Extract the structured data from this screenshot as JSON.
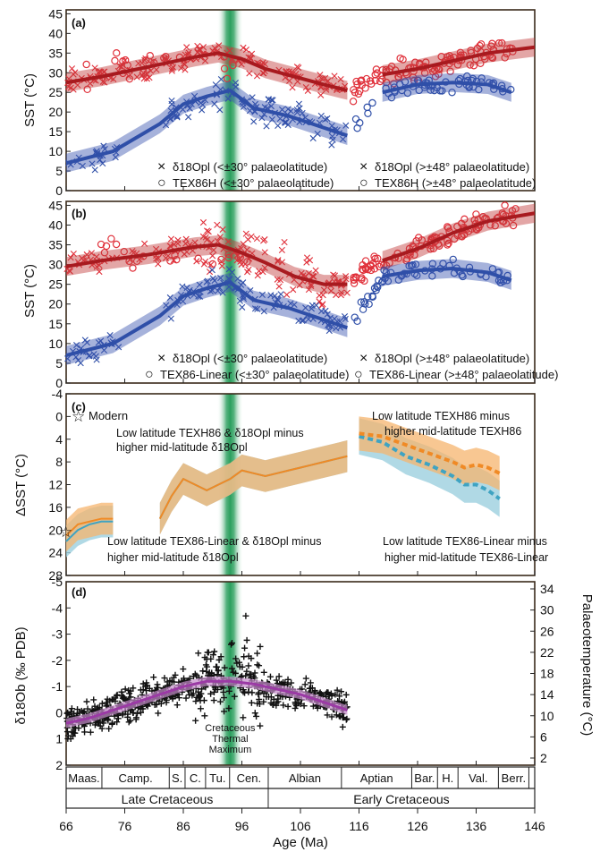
{
  "figure": {
    "x_axis": {
      "label": "Age (Ma)",
      "range": [
        66,
        146
      ],
      "ticks": [
        "66",
        "76",
        "86",
        "96",
        "106",
        "116",
        "126",
        "136",
        "146"
      ],
      "reversed_geologic": true
    },
    "highlight": {
      "label_lines": [
        "Cretaceous",
        "Thermal",
        "Maximum"
      ],
      "center_ma": 94,
      "half_width_ma": 2.2,
      "color": "#1f9a55"
    },
    "stages": [
      {
        "name": "Maas.",
        "from": 66,
        "to": 72.1
      },
      {
        "name": "Camp.",
        "from": 72.1,
        "to": 83.6
      },
      {
        "name": "S.",
        "from": 83.6,
        "to": 86.3
      },
      {
        "name": "C.",
        "from": 86.3,
        "to": 89.8
      },
      {
        "name": "Tu.",
        "from": 89.8,
        "to": 93.9
      },
      {
        "name": "Cen.",
        "from": 93.9,
        "to": 100.5
      },
      {
        "name": "Albian",
        "from": 100.5,
        "to": 113
      },
      {
        "name": "Aptian",
        "from": 113,
        "to": 125
      },
      {
        "name": "Bar.",
        "from": 125,
        "to": 129.4
      },
      {
        "name": "H.",
        "from": 129.4,
        "to": 132.9
      },
      {
        "name": "Val.",
        "from": 132.9,
        "to": 139.8
      },
      {
        "name": "Berr.",
        "from": 139.8,
        "to": 145
      }
    ],
    "epochs": [
      {
        "name": "Late Cretaceous",
        "from": 66,
        "to": 100.5
      },
      {
        "name": "Early Cretaceous",
        "from": 100.5,
        "to": 146
      }
    ]
  },
  "panels": {
    "a": {
      "tag": "(a)",
      "ylabel": "SST (°C)",
      "yticks": [
        "0",
        "5",
        "10",
        "15",
        "20",
        "25",
        "30",
        "35",
        "40",
        "45"
      ],
      "legend": [
        {
          "marker": "×",
          "color": "#e0303a",
          "text": "δ18Opl (<±30° palaeolatitude)"
        },
        {
          "marker": "○",
          "color": "#e0303a",
          "text": "TEX86H (<±30° palaeolatitude)"
        },
        {
          "marker": "×",
          "color": "#2f4fa8",
          "text": "δ18Opl (>±48° palaeolatitude)"
        },
        {
          "marker": "○",
          "color": "#2f4fa8",
          "text": "TEX86H (>±48° palaeolatitude)"
        }
      ]
    },
    "b": {
      "tag": "(b)",
      "ylabel": "SST (°C)",
      "yticks": [
        "0",
        "5",
        "10",
        "15",
        "20",
        "25",
        "30",
        "35",
        "40",
        "45"
      ],
      "legend": [
        {
          "marker": "×",
          "color": "#e0303a",
          "text": "δ18Opl (<±30° palaeolatitude)"
        },
        {
          "marker": "○",
          "color": "#e0303a",
          "text": "TEX86-Linear (<±30° palaeolatitude)"
        },
        {
          "marker": "×",
          "color": "#2f4fa8",
          "text": "δ18Opl (>±48° palaeolatitude)"
        },
        {
          "marker": "○",
          "color": "#2f4fa8",
          "text": "TEX86-Linear (>±48° palaeolatitude)"
        }
      ]
    },
    "c": {
      "tag": "(c)",
      "ylabel": "ΔSST (°C)",
      "yticks": [
        "-4",
        "0",
        "4",
        "8",
        "12",
        "16",
        "20",
        "24",
        "28"
      ],
      "modern_label": "Modern",
      "annotations": {
        "orange_left_1": "Low latitude TEXH86 & δ18Opl minus",
        "orange_left_2": "higher mid-latitude δ18Opl",
        "orange_right_1": "Low latitude TEXH86 minus",
        "orange_right_2": "higher mid-latitude TEXH86",
        "blue_left_1": "Low latitude TEX86-Linear & δ18Opl minus",
        "blue_left_2": "higher mid-latitude δ18Opl",
        "blue_right_1": "Low latitude TEX86-Linear minus",
        "blue_right_2": "higher mid-latitude TEX86-Linear"
      }
    },
    "d": {
      "tag": "(d)",
      "ylabel": "δ18Ob (‰ PDB)",
      "ylabel_right": "Palaeotemperature (°C)",
      "yticks": [
        "-5",
        "-4",
        "-3",
        "-2",
        "-1",
        "0",
        "1",
        "2"
      ],
      "yticks_right": [
        "2",
        "6",
        "10",
        "14",
        "18",
        "22",
        "26",
        "30",
        "34"
      ]
    }
  },
  "chart_data": [
    {
      "panel": "a",
      "type": "scatter",
      "xlim": [
        66,
        146
      ],
      "ylim": [
        0,
        46
      ],
      "series": [
        {
          "name": "Low latitude trend",
          "color": "#a81a1f",
          "x": [
            66,
            72,
            80,
            88,
            92,
            96,
            100,
            105,
            110,
            114,
            120,
            126,
            132,
            138,
            146
          ],
          "y": [
            27.5,
            29,
            31.5,
            34,
            35,
            33.5,
            31,
            29,
            27,
            25.5,
            29.5,
            31,
            33,
            35,
            36.5
          ]
        },
        {
          "name": "Mid-latitude trend",
          "color": "#2f4fa8",
          "x": [
            66,
            70,
            74,
            82,
            86,
            90,
            94,
            98,
            104,
            110,
            114,
            120,
            126,
            132,
            138,
            142
          ],
          "y": [
            7,
            8.5,
            10,
            17,
            22,
            24,
            25.5,
            21,
            19,
            16,
            14,
            25,
            27,
            27.5,
            27,
            25
          ]
        }
      ]
    },
    {
      "panel": "b",
      "type": "scatter",
      "xlim": [
        66,
        146
      ],
      "ylim": [
        0,
        46
      ],
      "series": [
        {
          "name": "Low latitude trend",
          "color": "#a81a1f",
          "x": [
            66,
            72,
            80,
            88,
            92,
            96,
            100,
            105,
            110,
            114,
            120,
            126,
            132,
            138,
            146
          ],
          "y": [
            29.5,
            31,
            32.5,
            34.5,
            35,
            33,
            30.5,
            27,
            25,
            25,
            31,
            34,
            38,
            41,
            43
          ]
        },
        {
          "name": "Mid-latitude trend",
          "color": "#2f4fa8",
          "x": [
            66,
            70,
            74,
            82,
            86,
            90,
            94,
            98,
            104,
            110,
            114,
            120,
            126,
            132,
            138,
            142
          ],
          "y": [
            7,
            8.5,
            10,
            17,
            22,
            24,
            25.5,
            21,
            19,
            16,
            14,
            27,
            28.5,
            29,
            28,
            26
          ]
        }
      ]
    },
    {
      "panel": "c",
      "type": "line",
      "xlim": [
        66,
        146
      ],
      "ylim": [
        -4,
        28
      ],
      "series": [
        {
          "name": "TEXH86",
          "color": "#f08a25",
          "x": [
            66,
            68,
            70,
            72,
            74,
            82,
            84,
            86,
            88,
            90,
            92,
            94,
            96,
            98,
            100,
            102,
            104,
            106,
            108,
            110,
            112,
            114
          ],
          "y": [
            21,
            19,
            18.5,
            18,
            18,
            18,
            14,
            11,
            12,
            13,
            12,
            11,
            9.5,
            10,
            10.5,
            10,
            9.5,
            9,
            8.5,
            8,
            7.5,
            7
          ]
        },
        {
          "name": "TEX86-Linear",
          "color": "#3fa3c2",
          "x": [
            66,
            68,
            70,
            72,
            74,
            82,
            84,
            86,
            88,
            90,
            92,
            94,
            96,
            98,
            100,
            102,
            104,
            106,
            108,
            110,
            112,
            114
          ],
          "y": [
            22,
            20,
            19,
            18.5,
            18.5,
            18,
            14,
            11,
            12,
            13,
            12,
            11,
            9.5,
            10,
            10.5,
            10,
            9.5,
            9,
            8.5,
            8,
            7.5,
            7
          ]
        },
        {
          "name": "TEXH86 mid",
          "color": "#f08a25",
          "dashed": true,
          "x": [
            116,
            120,
            124,
            128,
            132,
            134,
            136,
            138,
            140
          ],
          "y": [
            3,
            3.5,
            5,
            6.5,
            8,
            9,
            8.5,
            9,
            10
          ]
        },
        {
          "name": "TEX86-Linear mid",
          "color": "#3fa3c2",
          "dashed": true,
          "x": [
            116,
            120,
            124,
            128,
            132,
            134,
            136,
            138,
            140
          ],
          "y": [
            3.5,
            4.5,
            7,
            8.5,
            10.5,
            12,
            12,
            13,
            14.5
          ]
        }
      ]
    },
    {
      "panel": "d",
      "type": "scatter",
      "xlim": [
        66,
        146
      ],
      "ylim": [
        2,
        -5
      ],
      "series": [
        {
          "name": "δ18Ob",
          "color": "#111111",
          "marker": "+"
        },
        {
          "name": "Trend",
          "color": "#9b3aa5",
          "x": [
            66,
            70,
            74,
            78,
            82,
            86,
            90,
            94,
            98,
            102,
            106,
            110,
            114
          ],
          "y": [
            0.4,
            0.2,
            -0.1,
            -0.4,
            -0.7,
            -1,
            -1.2,
            -1.2,
            -1.1,
            -0.9,
            -0.7,
            -0.4,
            -0.1
          ]
        }
      ]
    }
  ]
}
